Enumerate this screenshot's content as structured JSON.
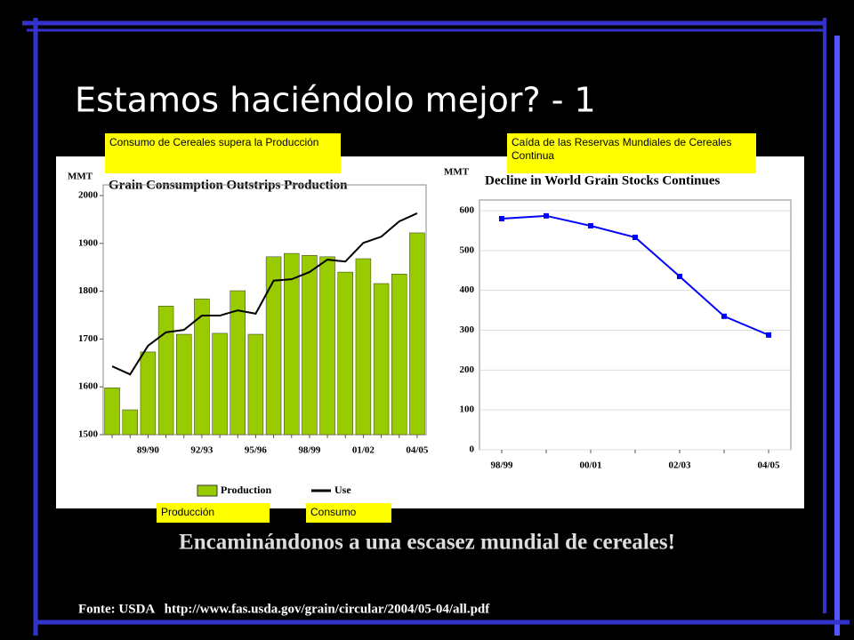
{
  "slide_title": "Estamos haciéndolo mejor? - 1",
  "callouts": [
    "Consumo de Cereales supera la Producción",
    "Caída de las Reservas Mundiales de Cereales Continua",
    "Producción",
    "Consumo"
  ],
  "headline": "Encaminándonos a una escasez mundial de cereales!",
  "source": "Fonte: USDA   http://www.fas.usda.gov/grain/circular/2004/05-04/all.pdf",
  "chart_data": [
    {
      "type": "bar",
      "title": "Grain Consumption Outstrips Production",
      "ylabel": "MMT",
      "categories": [
        null,
        null,
        "89/90",
        null,
        null,
        "92/93",
        null,
        null,
        "95/96",
        null,
        null,
        "98/99",
        null,
        null,
        "01/02",
        null,
        null,
        "04/05"
      ],
      "series": [
        {
          "name": "Production",
          "type": "bar",
          "color": "#99cc00",
          "values": [
            1598,
            1552,
            1673,
            1769,
            1710,
            1784,
            1712,
            1801,
            1710,
            1872,
            1879,
            1875,
            1872,
            1840,
            1868,
            1816,
            1836,
            1922
          ]
        },
        {
          "name": "Use",
          "type": "line",
          "color": "#000000",
          "values": [
            1643,
            1626,
            1686,
            1714,
            1719,
            1749,
            1749,
            1760,
            1753,
            1822,
            1825,
            1840,
            1866,
            1862,
            1901,
            1914,
            1946,
            1963
          ]
        }
      ],
      "ylim": [
        1500,
        2000
      ],
      "yticks": [
        1500,
        1600,
        1700,
        1800,
        1900,
        2000
      ]
    },
    {
      "type": "line",
      "title": "Decline in World Grain Stocks Continues",
      "ylabel": "MMT",
      "categories": [
        "98/99",
        null,
        "00/01",
        null,
        "02/03",
        null,
        "04/05"
      ],
      "values": [
        580,
        587,
        562,
        533,
        435,
        335,
        288
      ],
      "color": "#0000ff",
      "ylim": [
        0,
        600
      ],
      "yticks": [
        0,
        100,
        200,
        300,
        400,
        500,
        600
      ],
      "grid": true
    }
  ]
}
